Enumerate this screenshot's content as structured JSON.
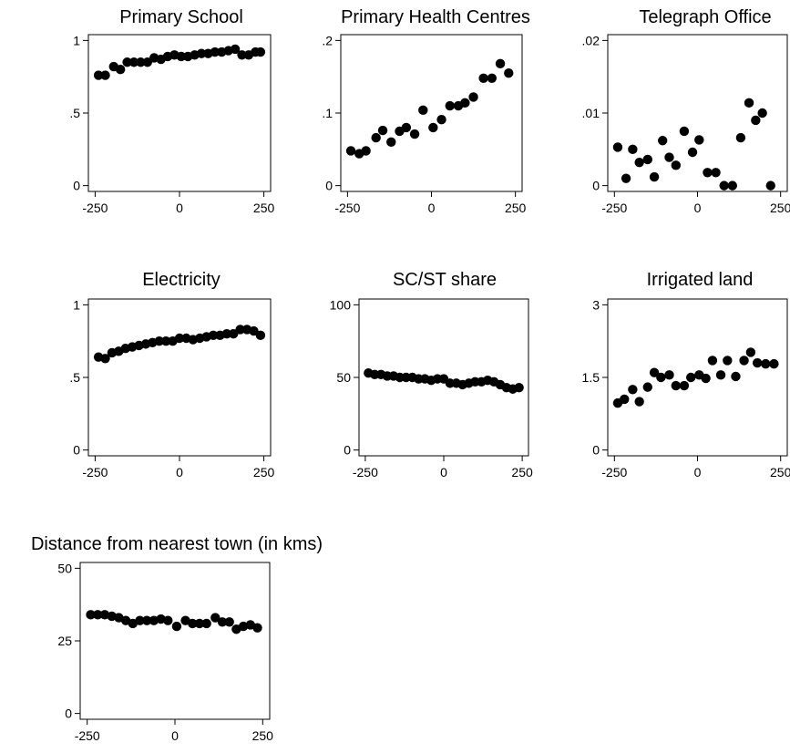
{
  "chart_data": [
    {
      "type": "scatter",
      "title": "Primary School",
      "xlabel": "",
      "ylabel": "",
      "xlim": [
        -270,
        270
      ],
      "ylim": [
        -0.04,
        1.04
      ],
      "xticks": [
        -250,
        0,
        250
      ],
      "xtick_labels": [
        "-250",
        "0",
        "250"
      ],
      "yticks": [
        0,
        0.5,
        1
      ],
      "ytick_labels": [
        "0",
        ".5",
        "1"
      ],
      "grid": false,
      "points": {
        "x": [
          -240,
          -220,
          -195,
          -175,
          -155,
          -135,
          -115,
          -95,
          -75,
          -55,
          -35,
          -15,
          5,
          25,
          45,
          65,
          85,
          105,
          125,
          145,
          165,
          185,
          205,
          225,
          240
        ],
        "y": [
          0.76,
          0.76,
          0.82,
          0.8,
          0.85,
          0.85,
          0.85,
          0.85,
          0.88,
          0.87,
          0.89,
          0.9,
          0.89,
          0.89,
          0.9,
          0.91,
          0.91,
          0.92,
          0.92,
          0.93,
          0.94,
          0.9,
          0.9,
          0.92,
          0.92
        ]
      }
    },
    {
      "type": "scatter",
      "title": "Primary Health Centres",
      "xlabel": "",
      "ylabel": "",
      "xlim": [
        -270,
        270
      ],
      "ylim": [
        -0.008,
        0.208
      ],
      "xticks": [
        -250,
        0,
        250
      ],
      "xtick_labels": [
        "-250",
        "0",
        "250"
      ],
      "yticks": [
        0,
        0.1,
        0.2
      ],
      "ytick_labels": [
        "0",
        ".1",
        ".2"
      ],
      "grid": false,
      "points": {
        "x": [
          -240,
          -215,
          -195,
          -165,
          -145,
          -120,
          -95,
          -75,
          -50,
          -25,
          5,
          30,
          55,
          80,
          100,
          125,
          155,
          180,
          205,
          230
        ],
        "y": [
          0.048,
          0.044,
          0.048,
          0.066,
          0.076,
          0.06,
          0.075,
          0.08,
          0.071,
          0.104,
          0.08,
          0.091,
          0.11,
          0.11,
          0.114,
          0.122,
          0.148,
          0.148,
          0.168,
          0.155
        ]
      }
    },
    {
      "type": "scatter",
      "title": "Telegraph Office",
      "xlabel": "",
      "ylabel": "",
      "xlim": [
        -270,
        270
      ],
      "ylim": [
        -0.0008,
        0.0208
      ],
      "xticks": [
        -250,
        0,
        250
      ],
      "xtick_labels": [
        "-250",
        "0",
        "250"
      ],
      "yticks": [
        0,
        0.01,
        0.02
      ],
      "ytick_labels": [
        "0",
        ".01",
        ".02"
      ],
      "grid": false,
      "points": {
        "x": [
          -240,
          -215,
          -195,
          -175,
          -150,
          -130,
          -105,
          -85,
          -65,
          -40,
          -15,
          5,
          30,
          55,
          80,
          105,
          130,
          155,
          175,
          195,
          220
        ],
        "y": [
          0.0053,
          0.001,
          0.005,
          0.0032,
          0.0036,
          0.0012,
          0.0062,
          0.0039,
          0.0028,
          0.0075,
          0.0046,
          0.0063,
          0.0018,
          0.0018,
          0.0,
          0.0,
          0.0066,
          0.0114,
          0.009,
          0.01,
          0.0
        ]
      }
    },
    {
      "type": "scatter",
      "title": "Electricity",
      "xlabel": "",
      "ylabel": "",
      "xlim": [
        -270,
        270
      ],
      "ylim": [
        -0.04,
        1.04
      ],
      "xticks": [
        -250,
        0,
        250
      ],
      "xtick_labels": [
        "-250",
        "0",
        "250"
      ],
      "yticks": [
        0,
        0.5,
        1
      ],
      "ytick_labels": [
        "0",
        ".5",
        "1"
      ],
      "grid": false,
      "points": {
        "x": [
          -240,
          -220,
          -200,
          -180,
          -160,
          -140,
          -120,
          -100,
          -80,
          -60,
          -40,
          -20,
          0,
          20,
          40,
          60,
          80,
          100,
          120,
          140,
          160,
          180,
          200,
          220,
          240
        ],
        "y": [
          0.64,
          0.63,
          0.67,
          0.68,
          0.7,
          0.71,
          0.72,
          0.73,
          0.74,
          0.75,
          0.75,
          0.75,
          0.77,
          0.77,
          0.76,
          0.77,
          0.78,
          0.79,
          0.79,
          0.8,
          0.8,
          0.83,
          0.83,
          0.82,
          0.79
        ]
      }
    },
    {
      "type": "scatter",
      "title": "SC/ST share",
      "xlabel": "",
      "ylabel": "",
      "xlim": [
        -270,
        270
      ],
      "ylim": [
        -4,
        104
      ],
      "xticks": [
        -250,
        0,
        250
      ],
      "xtick_labels": [
        "-250",
        "0",
        "250"
      ],
      "yticks": [
        0,
        50,
        100
      ],
      "ytick_labels": [
        "0",
        "50",
        "100"
      ],
      "grid": false,
      "points": {
        "x": [
          -240,
          -220,
          -200,
          -180,
          -160,
          -140,
          -120,
          -100,
          -80,
          -60,
          -40,
          -20,
          0,
          20,
          40,
          60,
          80,
          100,
          120,
          140,
          160,
          180,
          200,
          220,
          240
        ],
        "y": [
          53,
          52,
          52,
          51,
          51,
          50,
          50,
          50,
          49,
          49,
          48,
          49,
          49,
          46,
          46,
          45,
          46,
          47,
          47,
          48,
          47,
          45,
          43,
          42,
          43
        ]
      }
    },
    {
      "type": "scatter",
      "title": "Irrigated land",
      "xlabel": "",
      "ylabel": "",
      "xlim": [
        -270,
        270
      ],
      "ylim": [
        -0.12,
        3.12
      ],
      "xticks": [
        -250,
        0,
        250
      ],
      "xtick_labels": [
        "-250",
        "0",
        "250"
      ],
      "yticks": [
        0,
        1.5,
        3
      ],
      "ytick_labels": [
        "0",
        "1.5",
        "3"
      ],
      "grid": false,
      "points": {
        "x": [
          -240,
          -220,
          -195,
          -175,
          -150,
          -130,
          -110,
          -85,
          -65,
          -40,
          -20,
          5,
          25,
          45,
          70,
          90,
          115,
          140,
          160,
          180,
          205,
          230
        ],
        "y": [
          0.97,
          1.05,
          1.25,
          1.0,
          1.3,
          1.6,
          1.5,
          1.55,
          1.33,
          1.33,
          1.5,
          1.55,
          1.48,
          1.85,
          1.55,
          1.85,
          1.52,
          1.85,
          2.02,
          1.8,
          1.78,
          1.78
        ]
      }
    },
    {
      "type": "scatter",
      "title": "Distance from nearest town (in kms)",
      "xlabel": "",
      "ylabel": "",
      "xlim": [
        -270,
        270
      ],
      "ylim": [
        -2,
        52
      ],
      "xticks": [
        -250,
        0,
        250
      ],
      "xtick_labels": [
        "-250",
        "0",
        "250"
      ],
      "yticks": [
        0,
        25,
        50
      ],
      "ytick_labels": [
        "0",
        "25",
        "50"
      ],
      "grid": false,
      "points": {
        "x": [
          -240,
          -220,
          -200,
          -180,
          -160,
          -140,
          -120,
          -100,
          -80,
          -60,
          -40,
          -20,
          5,
          30,
          50,
          70,
          90,
          115,
          135,
          155,
          175,
          195,
          215,
          235
        ],
        "y": [
          34,
          34,
          34,
          33.5,
          33,
          32,
          31,
          32,
          32,
          32,
          32.5,
          32,
          30,
          32,
          31,
          31,
          31,
          33,
          31.5,
          31.5,
          29,
          30,
          30.5,
          29.5
        ]
      }
    }
  ]
}
